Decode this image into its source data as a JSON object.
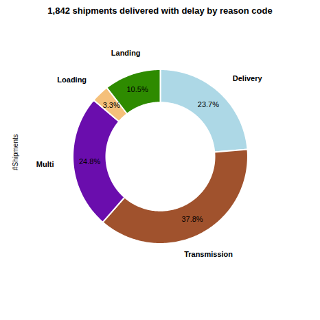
{
  "chart_data": {
    "type": "donut",
    "title": "1,842 shipments delivered with delay by reason code",
    "ylabel": "#Shipments",
    "categories": [
      "Delivery",
      "Transmission",
      "Multi",
      "Loading",
      "Landing"
    ],
    "values": [
      23.7,
      37.8,
      24.8,
      3.3,
      10.5
    ],
    "value_labels": [
      "23.7%",
      "37.8%",
      "24.8%",
      "3.3%",
      "10.5%"
    ],
    "colors": [
      "#add8e6",
      "#a0522d",
      "#6a0dad",
      "#f5c07a",
      "#2e8b00"
    ],
    "data_labels": true
  }
}
